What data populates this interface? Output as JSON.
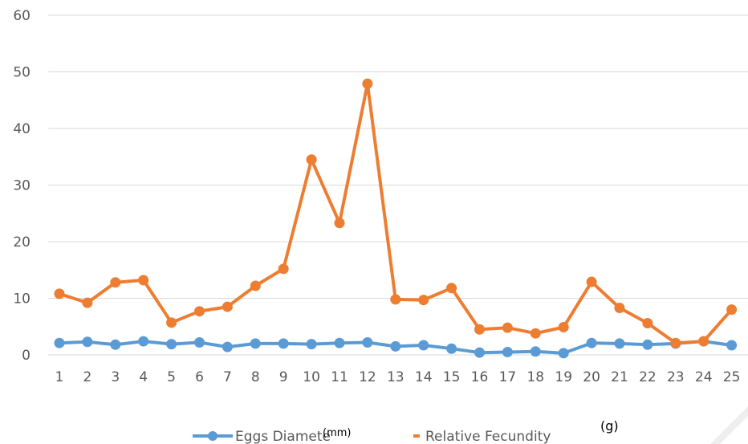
{
  "chart_data": {
    "type": "line",
    "categories": [
      "1",
      "2",
      "3",
      "4",
      "5",
      "6",
      "7",
      "8",
      "9",
      "10",
      "11",
      "12",
      "13",
      "14",
      "15",
      "16",
      "17",
      "18",
      "19",
      "20",
      "21",
      "22",
      "23",
      "24",
      "25"
    ],
    "ylim": [
      0,
      60
    ],
    "yticks": [
      "0",
      "10",
      "20",
      "30",
      "40",
      "50",
      "60"
    ],
    "grid": true,
    "legend": "bottom",
    "series": [
      {
        "name": "Eggs Diamete",
        "unit": "(mm)",
        "color": "#5B9BD5",
        "values": [
          2.1,
          2.3,
          1.8,
          2.4,
          1.9,
          2.2,
          1.4,
          2.0,
          2.0,
          1.9,
          2.1,
          2.2,
          1.5,
          1.7,
          1.1,
          0.4,
          0.5,
          0.6,
          0.3,
          2.1,
          2.0,
          1.8,
          2.0,
          2.4,
          1.7
        ]
      },
      {
        "name": "Relative Fecundity",
        "unit": "(g)",
        "color": "#ED7D31",
        "values": [
          10.8,
          9.2,
          12.8,
          13.2,
          5.7,
          7.7,
          8.5,
          12.2,
          15.2,
          34.5,
          23.3,
          47.9,
          9.8,
          9.7,
          11.8,
          4.5,
          4.8,
          3.8,
          4.9,
          12.9,
          8.3,
          5.6,
          2.1,
          2.4,
          8.0
        ]
      }
    ]
  }
}
